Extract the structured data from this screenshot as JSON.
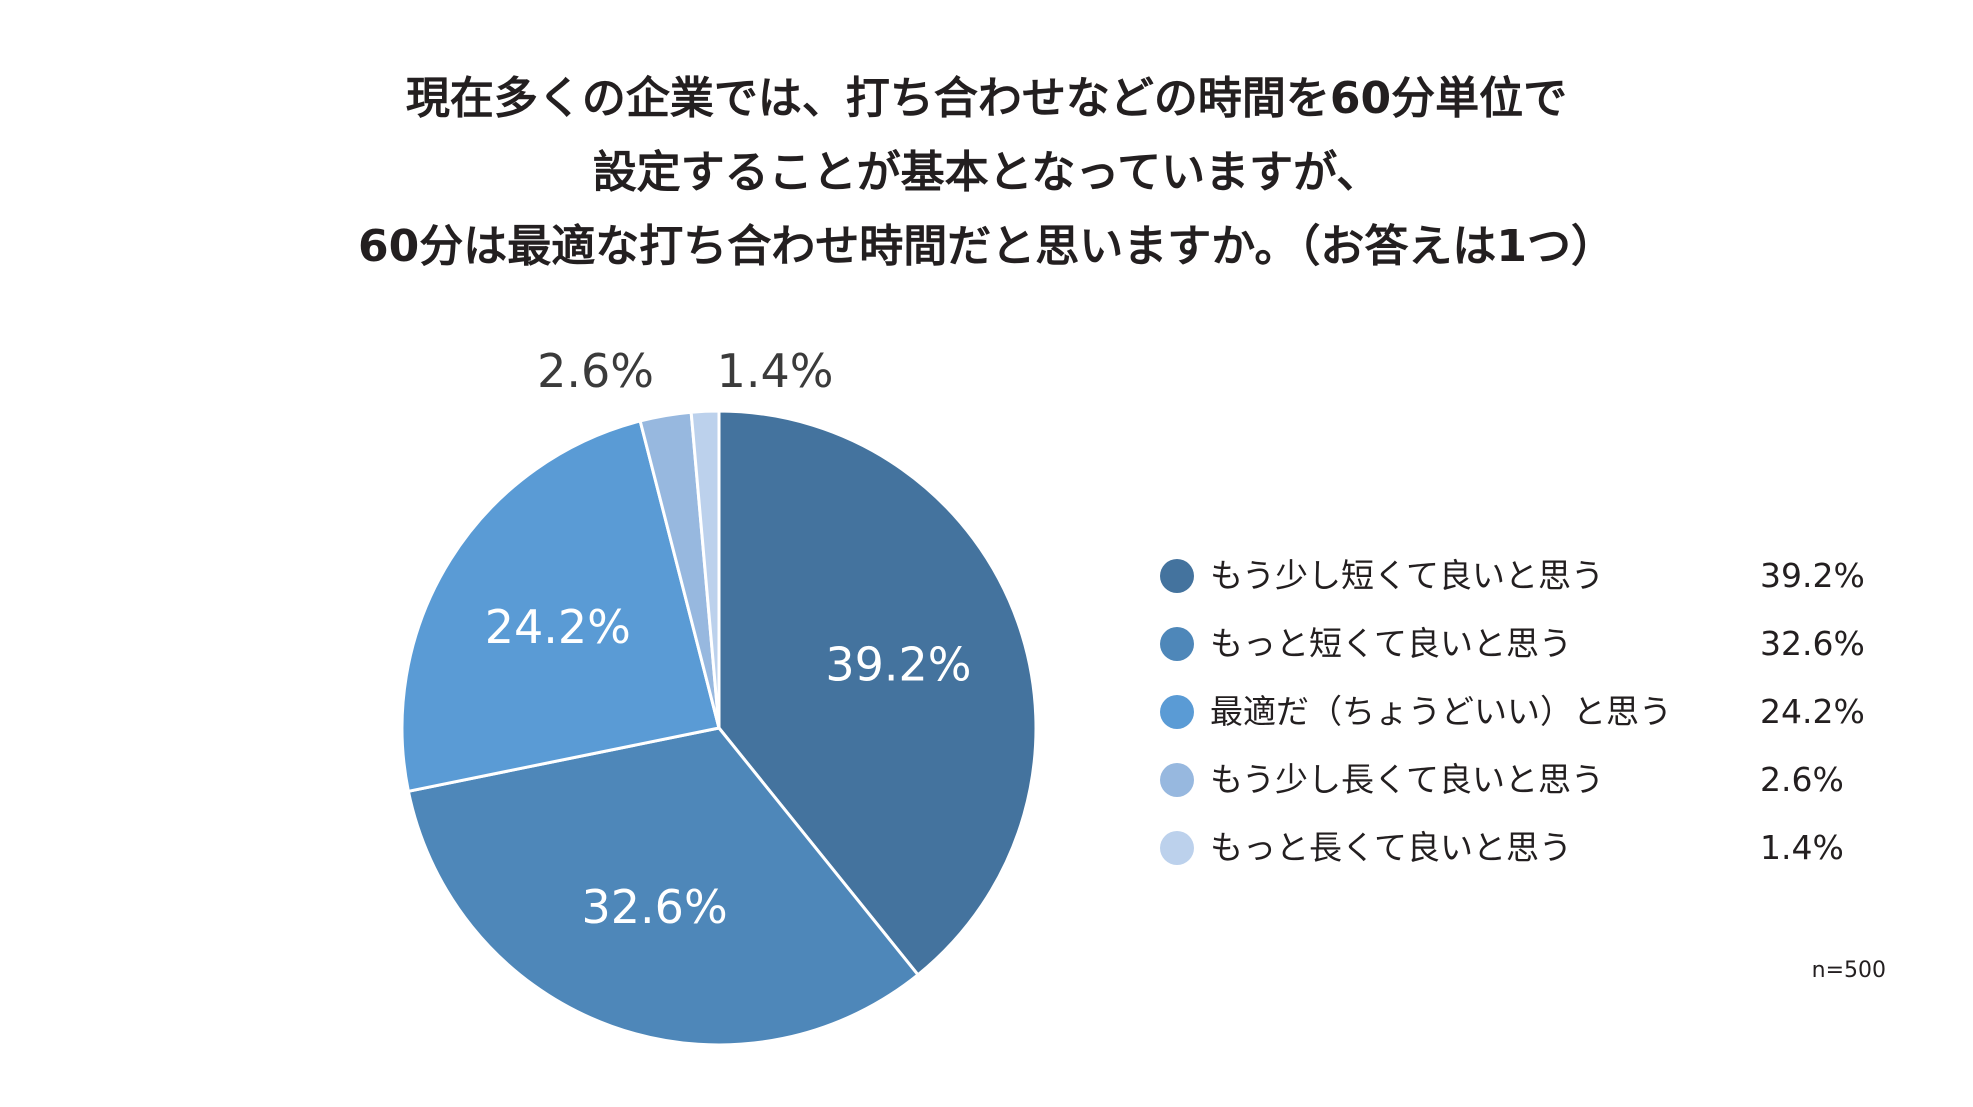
{
  "title_lines": [
    "現在多くの企業では、打ち合わせなどの時間を60分単位で",
    "設定することが基本となっていますが、",
    "60分は最適な打ち合わせ時間だと思いますか。（お答えは1つ）"
  ],
  "note": "n=500",
  "chart_data": {
    "type": "pie",
    "title": "現在多くの企業では、打ち合わせなどの時間を60分単位で設定することが基本となっていますが、60分は最適な打ち合わせ時間だと思いますか。（お答えは1つ）",
    "unit": "%",
    "start_angle_deg": 0,
    "direction": "clockwise",
    "legend_position": "right",
    "slices": [
      {
        "label": "もう少し短くて良いと思う",
        "value": 39.2,
        "value_text": "39.2%",
        "color": "#44739e",
        "label_inside": true
      },
      {
        "label": "もっと短くて良いと思う",
        "value": 32.6,
        "value_text": "32.6%",
        "color": "#4e87b9",
        "label_inside": true
      },
      {
        "label": "最適だ（ちょうどいい）と思う",
        "value": 24.2,
        "value_text": "24.2%",
        "color": "#5a9bd5",
        "label_inside": true
      },
      {
        "label": "もう少し長くて良いと思う",
        "value": 2.6,
        "value_text": "2.6%",
        "color": "#97b8df",
        "label_inside": false
      },
      {
        "label": "もっと長くて良いと思う",
        "value": 1.4,
        "value_text": "1.4%",
        "color": "#bcd1ec",
        "label_inside": false
      }
    ]
  }
}
